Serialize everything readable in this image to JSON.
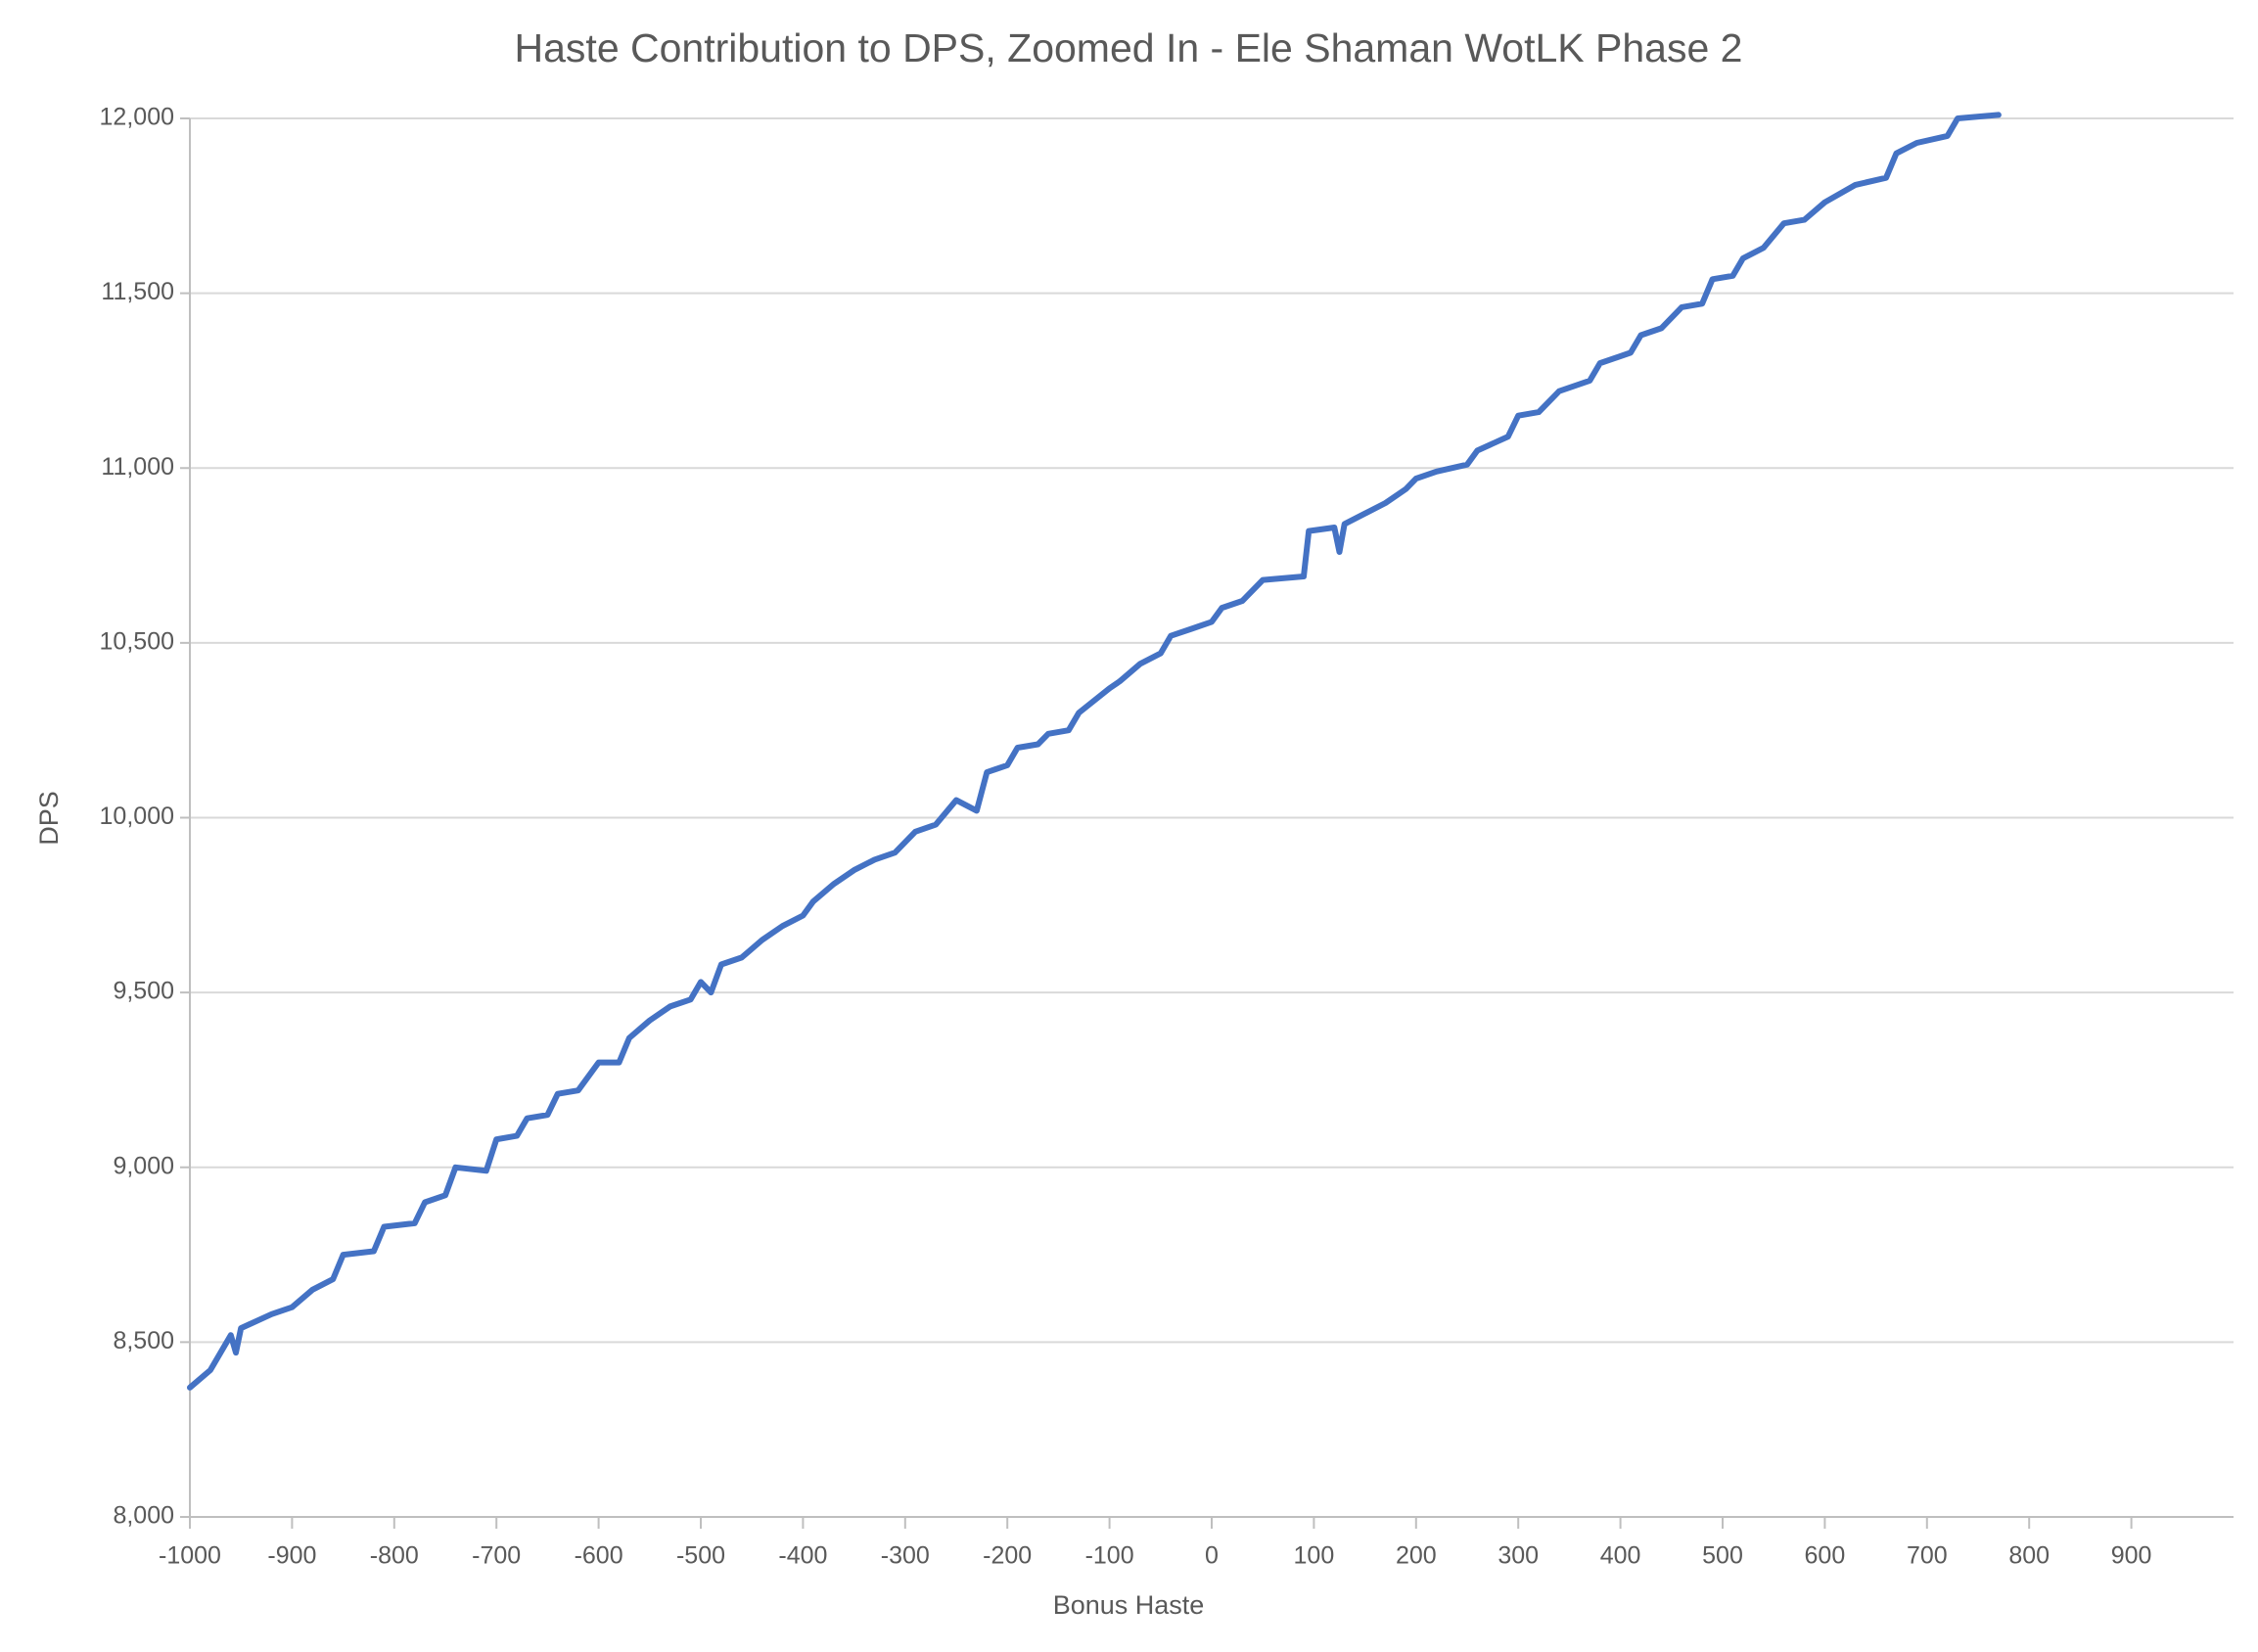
{
  "chart_data": {
    "type": "line",
    "title": "Haste Contribution to DPS, Zoomed In - Ele Shaman WotLK Phase 2",
    "x_label": "Bonus Haste",
    "y_label": "DPS",
    "xlim": [
      -1000,
      1000
    ],
    "ylim": [
      8000,
      12000
    ],
    "xticks": [
      -1000,
      -900,
      -800,
      -700,
      -600,
      -500,
      -400,
      -300,
      -200,
      -100,
      0,
      100,
      200,
      300,
      400,
      500,
      600,
      700,
      800,
      900
    ],
    "yticks": [
      {
        "value": 8000,
        "label": "8,000"
      },
      {
        "value": 8500,
        "label": "8,500"
      },
      {
        "value": 9000,
        "label": "9,000"
      },
      {
        "value": 9500,
        "label": "9,500"
      },
      {
        "value": 10000,
        "label": "10,000"
      },
      {
        "value": 10500,
        "label": "10,500"
      },
      {
        "value": 11000,
        "label": "11,000"
      },
      {
        "value": 11500,
        "label": "11,500"
      },
      {
        "value": 12000,
        "label": "12,000"
      }
    ],
    "grid": true,
    "x": [
      -1000,
      -980,
      -960,
      -955,
      -950,
      -920,
      -900,
      -880,
      -860,
      -850,
      -820,
      -810,
      -780,
      -770,
      -750,
      -740,
      -710,
      -700,
      -680,
      -670,
      -650,
      -640,
      -620,
      -600,
      -580,
      -570,
      -550,
      -530,
      -510,
      -500,
      -490,
      -480,
      -460,
      -440,
      -420,
      -400,
      -390,
      -370,
      -350,
      -330,
      -310,
      -290,
      -270,
      -250,
      -230,
      -220,
      -200,
      -190,
      -170,
      -160,
      -140,
      -130,
      -100,
      -90,
      -70,
      -50,
      -40,
      -20,
      0,
      10,
      30,
      50,
      90,
      95,
      120,
      125,
      130,
      150,
      170,
      190,
      200,
      220,
      250,
      260,
      290,
      300,
      320,
      340,
      370,
      380,
      410,
      420,
      440,
      460,
      480,
      490,
      510,
      520,
      540,
      560,
      580,
      600,
      630,
      660,
      670,
      690,
      720,
      730,
      770
    ],
    "series": [
      {
        "color": "#4472c4",
        "values": [
          8370,
          8420,
          8520,
          8470,
          8540,
          8580,
          8600,
          8650,
          8680,
          8750,
          8760,
          8830,
          8840,
          8900,
          8920,
          9000,
          8990,
          9080,
          9090,
          9140,
          9150,
          9210,
          9220,
          9300,
          9300,
          9370,
          9420,
          9460,
          9480,
          9530,
          9500,
          9580,
          9600,
          9650,
          9690,
          9720,
          9760,
          9810,
          9850,
          9880,
          9900,
          9960,
          9980,
          10050,
          10020,
          10130,
          10150,
          10200,
          10210,
          10240,
          10250,
          10300,
          10370,
          10390,
          10440,
          10470,
          10520,
          10540,
          10560,
          10600,
          10620,
          10680,
          10690,
          10820,
          10830,
          10760,
          10840,
          10870,
          10900,
          10940,
          10970,
          10990,
          11010,
          11050,
          11090,
          11150,
          11160,
          11220,
          11250,
          11300,
          11330,
          11380,
          11400,
          11460,
          11470,
          11540,
          11550,
          11600,
          11630,
          11700,
          11710,
          11760,
          11810,
          11830,
          11900,
          11930,
          11950,
          12000,
          12010
        ]
      }
    ]
  }
}
